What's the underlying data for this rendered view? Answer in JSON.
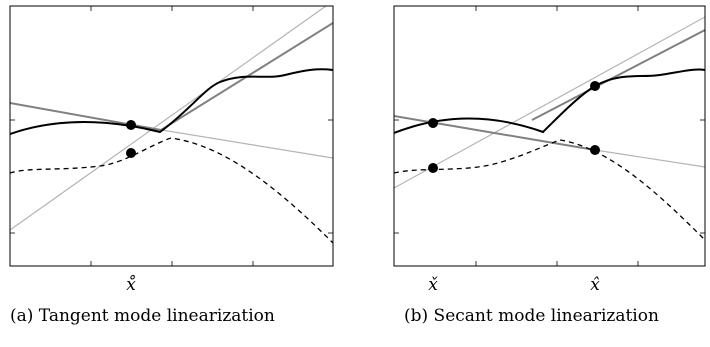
{
  "panels": [
    {
      "id": "tangent",
      "caption": "(a) Tangent mode linearization",
      "ticks": [
        {
          "label": "x̊"
        }
      ]
    },
    {
      "id": "secant",
      "caption": "(b) Secant mode linearization",
      "ticks": [
        {
          "label": "x̌"
        },
        {
          "label": "x̂"
        }
      ]
    }
  ],
  "colors": {
    "frame": "#000000",
    "solid_curve": "#000000",
    "dashed_curve": "#000000",
    "dark_line": "#808080",
    "light_line": "#b4b4b4",
    "points": "#000000"
  }
}
